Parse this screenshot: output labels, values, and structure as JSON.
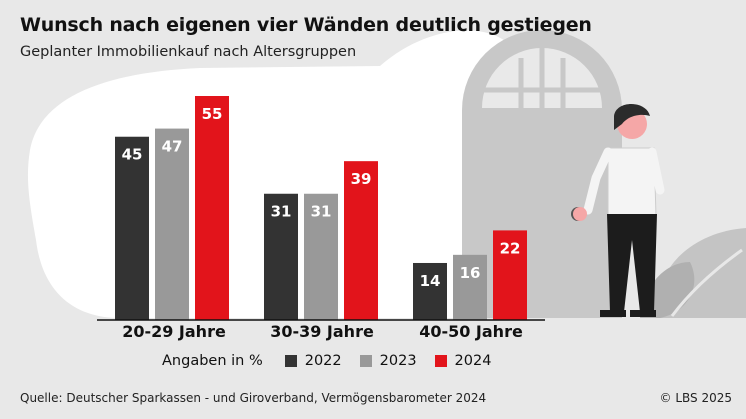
{
  "header": {
    "title": "Wunsch nach eigenen vier Wänden deutlich gestiegen",
    "subtitle": "Geplanter Immobilienkauf nach Altersgruppen"
  },
  "legend": {
    "unit_label": "Angaben in %"
  },
  "footer": {
    "source": "Quelle: Deutscher Sparkassen - und Giroverband, Vermögensbarometer 2024",
    "copyright": "© LBS 2025"
  },
  "colors": {
    "background": "#e8e8e8",
    "blob": "#ffffff",
    "series_2022": "#333333",
    "series_2023": "#999999",
    "series_2024": "#e2141b",
    "illustration_gray": "#c8c8c8",
    "illustration_dark": "#2b2b2b",
    "skin": "#f5a7a7"
  },
  "chart_data": {
    "type": "bar",
    "title": "Wunsch nach eigenen vier Wänden deutlich gestiegen",
    "subtitle": "Geplanter Immobilienkauf nach Altersgruppen",
    "unit": "Angaben in %",
    "categories": [
      "20-29 Jahre",
      "30-39 Jahre",
      "40-50 Jahre"
    ],
    "series": [
      {
        "name": "2022",
        "color": "#333333",
        "values": [
          45,
          31,
          14
        ]
      },
      {
        "name": "2023",
        "color": "#999999",
        "values": [
          47,
          31,
          16
        ]
      },
      {
        "name": "2024",
        "color": "#e2141b",
        "values": [
          55,
          39,
          22
        ]
      }
    ],
    "ylim": [
      0,
      60
    ],
    "grid": false,
    "data_labels": true,
    "legend_position": "bottom"
  }
}
